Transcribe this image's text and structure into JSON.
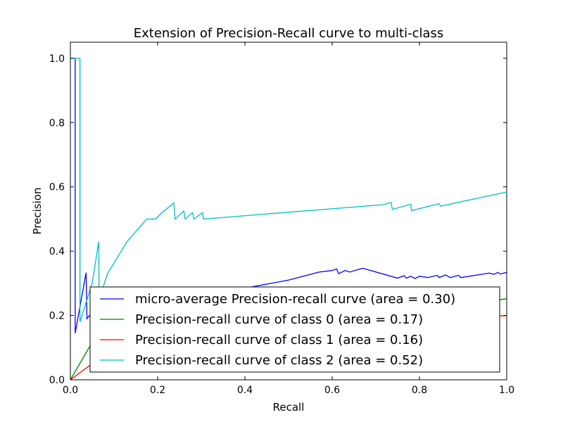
{
  "chart_data": {
    "type": "line",
    "title": "Extension of Precision-Recall curve to multi-class",
    "xlabel": "Recall",
    "ylabel": "Precision",
    "xlim": [
      0.0,
      1.0
    ],
    "ylim": [
      0.0,
      1.05
    ],
    "x_ticks": [
      0.0,
      0.2,
      0.4,
      0.6,
      0.8,
      1.0
    ],
    "x_tick_labels": [
      "0.0",
      "0.2",
      "0.4",
      "0.6",
      "0.8",
      "1.0"
    ],
    "y_ticks": [
      0.0,
      0.2,
      0.4,
      0.6,
      0.8,
      1.0
    ],
    "y_tick_labels": [
      "0.0",
      "0.2",
      "0.4",
      "0.6",
      "0.8",
      "1.0"
    ],
    "grid": false,
    "legend_position": "lower-right",
    "series": [
      {
        "name": "micro-average Precision-recall curve (area = 0.30)",
        "color": "#0000ff",
        "points": [
          [
            0.0,
            1.0
          ],
          [
            0.011,
            1.0
          ],
          [
            0.011,
            0.145
          ],
          [
            0.036,
            0.333
          ],
          [
            0.038,
            0.19
          ],
          [
            0.05,
            0.21
          ],
          [
            0.06,
            0.215
          ],
          [
            0.08,
            0.225
          ],
          [
            0.12,
            0.24
          ],
          [
            0.2,
            0.255
          ],
          [
            0.3,
            0.27
          ],
          [
            0.4,
            0.285
          ],
          [
            0.5,
            0.31
          ],
          [
            0.57,
            0.335
          ],
          [
            0.6,
            0.34
          ],
          [
            0.61,
            0.345
          ],
          [
            0.615,
            0.33
          ],
          [
            0.63,
            0.34
          ],
          [
            0.64,
            0.335
          ],
          [
            0.67,
            0.347
          ],
          [
            0.75,
            0.316
          ],
          [
            0.765,
            0.324
          ],
          [
            0.77,
            0.316
          ],
          [
            0.78,
            0.322
          ],
          [
            0.79,
            0.315
          ],
          [
            0.8,
            0.322
          ],
          [
            0.82,
            0.318
          ],
          [
            0.84,
            0.325
          ],
          [
            0.845,
            0.318
          ],
          [
            0.86,
            0.326
          ],
          [
            0.87,
            0.318
          ],
          [
            0.89,
            0.325
          ],
          [
            0.895,
            0.318
          ],
          [
            0.96,
            0.332
          ],
          [
            0.97,
            0.328
          ],
          [
            0.98,
            0.334
          ],
          [
            0.985,
            0.329
          ],
          [
            1.0,
            0.334
          ]
        ]
      },
      {
        "name": "Precision-recall curve of class 0 (area = 0.17)",
        "color": "#008000",
        "points": [
          [
            0.0,
            0.0
          ],
          [
            0.06,
            0.14
          ],
          [
            0.065,
            0.13
          ],
          [
            0.12,
            0.15
          ],
          [
            0.2,
            0.16
          ],
          [
            0.3,
            0.17
          ],
          [
            0.4,
            0.18
          ],
          [
            0.5,
            0.19
          ],
          [
            0.6,
            0.2
          ],
          [
            0.7,
            0.21
          ],
          [
            0.8,
            0.22
          ],
          [
            0.9,
            0.235
          ],
          [
            1.0,
            0.252
          ]
        ]
      },
      {
        "name": "Precision-recall curve of class 1 (area = 0.16)",
        "color": "#ff0000",
        "points": [
          [
            0.0,
            0.0
          ],
          [
            0.08,
            0.08
          ],
          [
            0.2,
            0.1
          ],
          [
            0.3,
            0.115
          ],
          [
            0.4,
            0.125
          ],
          [
            0.5,
            0.14
          ],
          [
            0.6,
            0.15
          ],
          [
            0.7,
            0.16
          ],
          [
            0.8,
            0.17
          ],
          [
            0.9,
            0.185
          ],
          [
            0.95,
            0.195
          ],
          [
            1.0,
            0.2
          ]
        ]
      },
      {
        "name": "Precision-recall curve of class 2 (area = 0.52)",
        "color": "#00bfbf",
        "points": [
          [
            0.0,
            1.0
          ],
          [
            0.022,
            1.0
          ],
          [
            0.022,
            0.18
          ],
          [
            0.05,
            0.3
          ],
          [
            0.065,
            0.43
          ],
          [
            0.066,
            0.25
          ],
          [
            0.085,
            0.33
          ],
          [
            0.13,
            0.43
          ],
          [
            0.175,
            0.5
          ],
          [
            0.195,
            0.5
          ],
          [
            0.21,
            0.52
          ],
          [
            0.237,
            0.55
          ],
          [
            0.24,
            0.5
          ],
          [
            0.26,
            0.525
          ],
          [
            0.263,
            0.5
          ],
          [
            0.28,
            0.52
          ],
          [
            0.283,
            0.5
          ],
          [
            0.303,
            0.52
          ],
          [
            0.305,
            0.5
          ],
          [
            0.72,
            0.545
          ],
          [
            0.735,
            0.552
          ],
          [
            0.738,
            0.53
          ],
          [
            0.78,
            0.546
          ],
          [
            0.782,
            0.526
          ],
          [
            0.845,
            0.548
          ],
          [
            0.848,
            0.54
          ],
          [
            1.0,
            0.584
          ]
        ]
      }
    ]
  }
}
